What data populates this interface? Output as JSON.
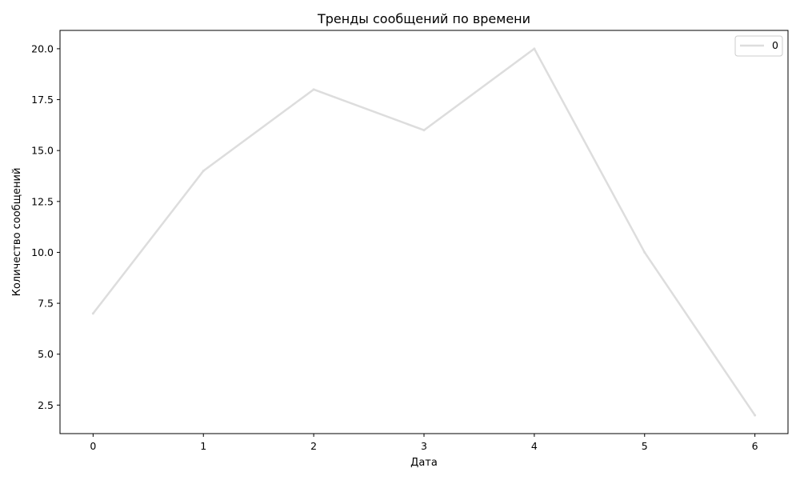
{
  "chart_data": {
    "type": "line",
    "title": "Тренды сообщений по времени",
    "xlabel": "Дата",
    "ylabel": "Количество сообщений",
    "x": [
      0,
      1,
      2,
      3,
      4,
      5,
      6
    ],
    "xticks": [
      "0",
      "1",
      "2",
      "3",
      "4",
      "5",
      "6"
    ],
    "yticks": [
      2.5,
      5.0,
      7.5,
      10.0,
      12.5,
      15.0,
      17.5,
      20.0
    ],
    "ytick_labels": [
      "2.5",
      "5.0",
      "7.5",
      "10.0",
      "12.5",
      "15.0",
      "17.5",
      "20.0"
    ],
    "xlim": [
      -0.3,
      6.3
    ],
    "ylim": [
      1.1,
      20.9
    ],
    "grid": false,
    "legend_position": "top-right",
    "series": [
      {
        "name": "0",
        "color": "#dddddd",
        "values": [
          7,
          14,
          18,
          16,
          20,
          10,
          2
        ]
      }
    ]
  }
}
